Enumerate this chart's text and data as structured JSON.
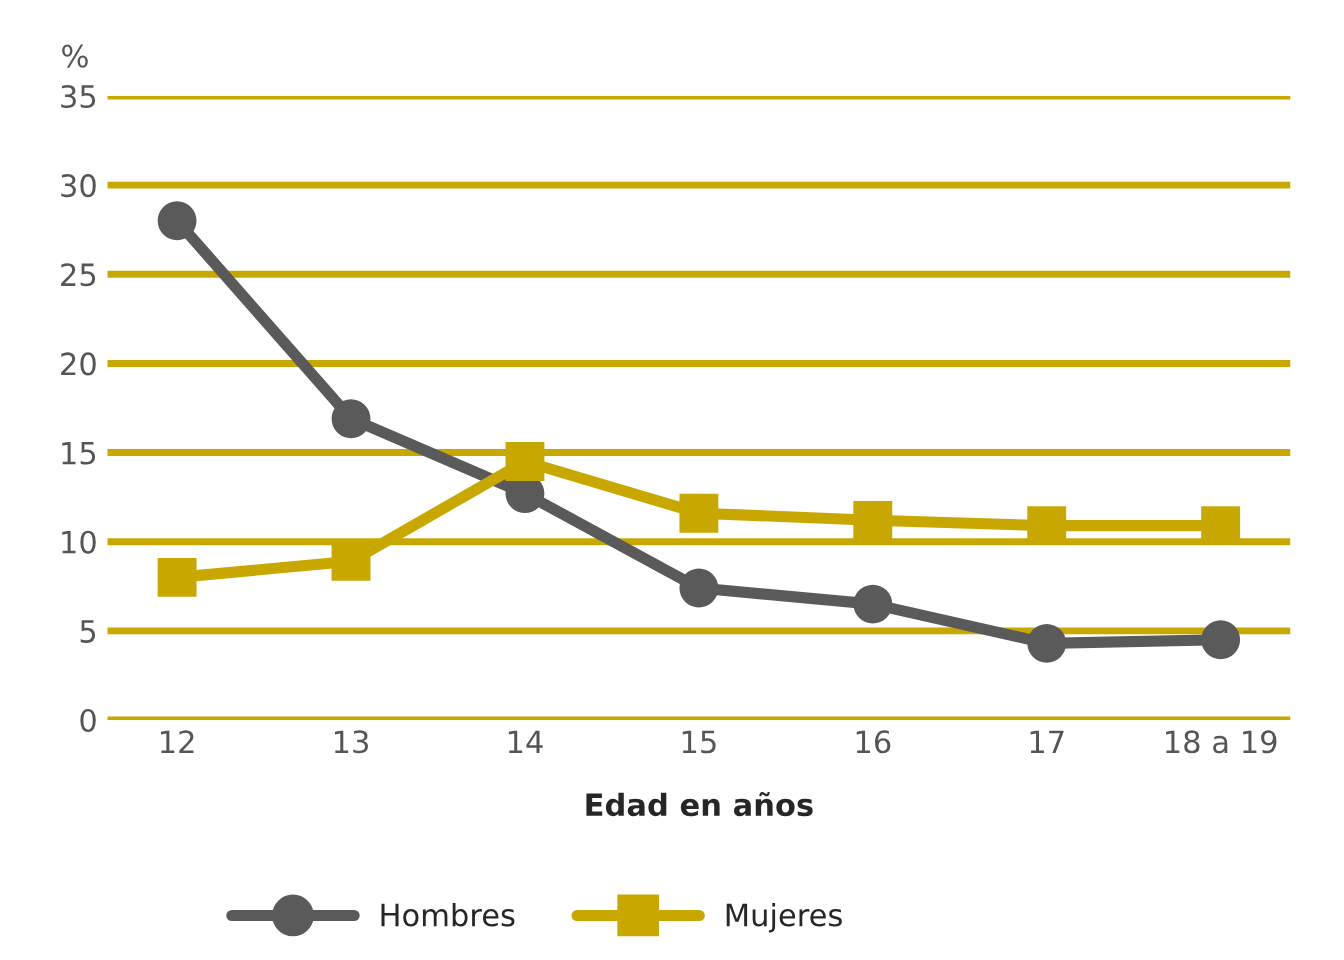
{
  "chart_data": {
    "type": "line",
    "ylabel": "%",
    "xlabel": "Edad en años",
    "categories": [
      "12",
      "13",
      "14",
      "15",
      "16",
      "17",
      "18 a 19"
    ],
    "series": [
      {
        "name": "Hombres",
        "color": "#5a5a5a",
        "marker": "circle",
        "values": [
          28,
          16.9,
          12.7,
          7.4,
          6.5,
          4.3,
          4.5
        ]
      },
      {
        "name": "Mujeres",
        "color": "#c8a800",
        "marker": "square",
        "values": [
          8,
          8.9,
          14.5,
          11.6,
          11.2,
          10.9,
          10.9
        ]
      }
    ],
    "ylim": [
      0,
      35
    ],
    "yticks": [
      0,
      5,
      10,
      15,
      20,
      25,
      30,
      35
    ],
    "grid": "y",
    "legend": "bottom"
  }
}
